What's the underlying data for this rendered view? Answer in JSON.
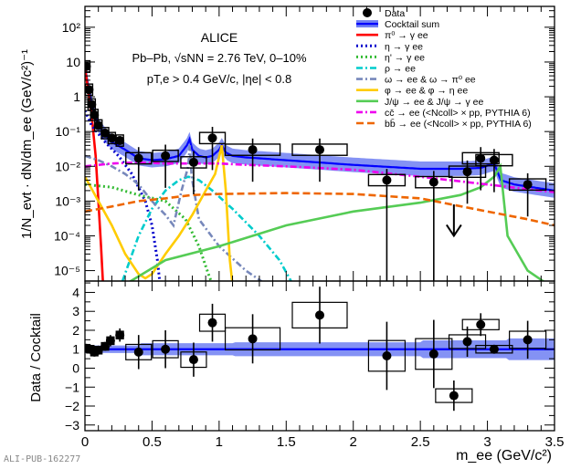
{
  "figure_id": "ALI-PUB-162277",
  "chart_data": [
    {
      "type": "line",
      "panel": "upper",
      "ylabel": "1/N_evt · dN/dm_ee (GeV/c²)⁻¹",
      "xlim": [
        0,
        3.5
      ],
      "ylim_log10": [
        -5.3,
        2.6
      ],
      "ytick_labels": [
        "10²",
        "10",
        "1",
        "10⁻¹",
        "10⁻²",
        "10⁻³",
        "10⁻⁴",
        "10⁻⁵"
      ],
      "ytick_values": [
        100,
        10,
        1,
        0.1,
        0.01,
        0.001,
        0.0001,
        1e-05
      ],
      "annotations": {
        "experiment": "ALICE",
        "system": "Pb–Pb, √sNN = 2.76 TeV, 0–10%",
        "cuts": "pT,e > 0.4 GeV/c, |ηe| < 0.8"
      },
      "legend_position": "top-right",
      "legend": [
        {
          "label": "Data",
          "color": "#000000",
          "style": "marker"
        },
        {
          "label": "Cocktail sum",
          "color": "#0000ff",
          "style": "band"
        },
        {
          "label": "π⁰ → γ ee",
          "color": "#ff0000",
          "style": "solid"
        },
        {
          "label": "η → γ ee",
          "color": "#0000cc",
          "style": "dotted"
        },
        {
          "label": "η' → γ ee",
          "color": "#33bb33",
          "style": "dotted"
        },
        {
          "label": "ρ → ee",
          "color": "#00cccc",
          "style": "dashdot"
        },
        {
          "label": "ω → ee  &  ω → π⁰ ee",
          "color": "#7788bb",
          "style": "dashdot"
        },
        {
          "label": "φ → ee  &  φ → η ee",
          "color": "#ffcc00",
          "style": "solid"
        },
        {
          "label": "J/ψ → ee  &  J/ψ → γ ee",
          "color": "#55cc55",
          "style": "solid"
        },
        {
          "label": "cc̄ → ee (<Ncoll> × pp, PYTHIA 6)",
          "color": "#ee00ee",
          "style": "dashdot"
        },
        {
          "label": "bb̄ → ee (<Ncoll> × pp, PYTHIA 6)",
          "color": "#ee6600",
          "style": "dashed"
        }
      ],
      "data_points": [
        {
          "x": 0.01,
          "y": 7.5
        },
        {
          "x": 0.03,
          "y": 1.6
        },
        {
          "x": 0.05,
          "y": 0.6
        },
        {
          "x": 0.07,
          "y": 0.3
        },
        {
          "x": 0.1,
          "y": 0.15
        },
        {
          "x": 0.15,
          "y": 0.09
        },
        {
          "x": 0.2,
          "y": 0.065
        },
        {
          "x": 0.26,
          "y": 0.055
        },
        {
          "x": 0.4,
          "y": 0.017
        },
        {
          "x": 0.6,
          "y": 0.02
        },
        {
          "x": 0.81,
          "y": 0.013
        },
        {
          "x": 0.95,
          "y": 0.065
        },
        {
          "x": 1.25,
          "y": 0.03
        },
        {
          "x": 1.75,
          "y": 0.03
        },
        {
          "x": 2.25,
          "y": 0.004
        },
        {
          "x": 2.6,
          "y": 0.0035
        },
        {
          "x": 2.85,
          "y": 0.007
        },
        {
          "x": 2.95,
          "y": 0.017
        },
        {
          "x": 3.05,
          "y": 0.015
        },
        {
          "x": 3.3,
          "y": 0.003
        }
      ],
      "upper_limit": {
        "x": 2.75,
        "y_from": 0.0008,
        "y_to": 0.0001
      },
      "cocktail_sum": {
        "x": [
          0.0,
          0.02,
          0.05,
          0.1,
          0.15,
          0.2,
          0.3,
          0.4,
          0.5,
          0.6,
          0.7,
          0.76,
          0.78,
          0.8,
          0.85,
          0.9,
          0.95,
          1.0,
          1.02,
          1.05,
          1.1,
          1.2,
          1.5,
          2.0,
          2.5,
          2.8,
          2.95,
          3.05,
          3.1,
          3.2,
          3.5
        ],
        "y": [
          7.0,
          2.5,
          0.6,
          0.15,
          0.08,
          0.05,
          0.03,
          0.017,
          0.015,
          0.016,
          0.02,
          0.04,
          0.06,
          0.03,
          0.02,
          0.018,
          0.02,
          0.03,
          0.04,
          0.025,
          0.02,
          0.018,
          0.015,
          0.011,
          0.0085,
          0.0085,
          0.009,
          0.012,
          0.004,
          0.003,
          0.002
        ]
      },
      "band_rel": [
        0.62,
        1.62
      ]
    },
    {
      "type": "scatter",
      "panel": "lower",
      "ylabel": "Data / Cocktail",
      "xlabel": "m_ee (GeV/c²)",
      "xlim": [
        0,
        3.5
      ],
      "ylim": [
        -3.3,
        4.6
      ],
      "xtick_labels": [
        "0",
        "0.5",
        "1",
        "1.5",
        "2",
        "2.5",
        "3",
        "3.5"
      ],
      "ytick_labels": [
        "4",
        "3",
        "2",
        "1",
        "0",
        "−1",
        "−2",
        "−3"
      ],
      "ratio_points": [
        {
          "x": 0.01,
          "y": 1.05,
          "err": 0.15
        },
        {
          "x": 0.04,
          "y": 1.0,
          "err": 0.12
        },
        {
          "x": 0.07,
          "y": 0.85,
          "err": 0.15
        },
        {
          "x": 0.1,
          "y": 0.95,
          "err": 0.2
        },
        {
          "x": 0.15,
          "y": 1.15,
          "err": 0.2
        },
        {
          "x": 0.19,
          "y": 1.45,
          "err": 0.3
        },
        {
          "x": 0.26,
          "y": 1.75,
          "err": 0.35
        },
        {
          "x": 0.4,
          "y": 0.85,
          "err": 0.9
        },
        {
          "x": 0.6,
          "y": 1.0,
          "err": 1.0
        },
        {
          "x": 0.81,
          "y": 0.45,
          "err": 0.9
        },
        {
          "x": 0.95,
          "y": 2.4,
          "err": 1.0
        },
        {
          "x": 1.25,
          "y": 1.55,
          "err": 1.3
        },
        {
          "x": 1.75,
          "y": 2.8,
          "err": 1.5
        },
        {
          "x": 2.25,
          "y": 0.65,
          "err": 1.8
        },
        {
          "x": 2.6,
          "y": 0.75,
          "err": 1.8
        },
        {
          "x": 2.75,
          "y": -1.45,
          "err": 0.8
        },
        {
          "x": 2.85,
          "y": 1.4,
          "err": 0.8
        },
        {
          "x": 2.95,
          "y": 2.3,
          "err": 0.6
        },
        {
          "x": 3.05,
          "y": 1.0,
          "err": 0.2
        },
        {
          "x": 3.3,
          "y": 1.5,
          "err": 1.0
        }
      ]
    }
  ]
}
